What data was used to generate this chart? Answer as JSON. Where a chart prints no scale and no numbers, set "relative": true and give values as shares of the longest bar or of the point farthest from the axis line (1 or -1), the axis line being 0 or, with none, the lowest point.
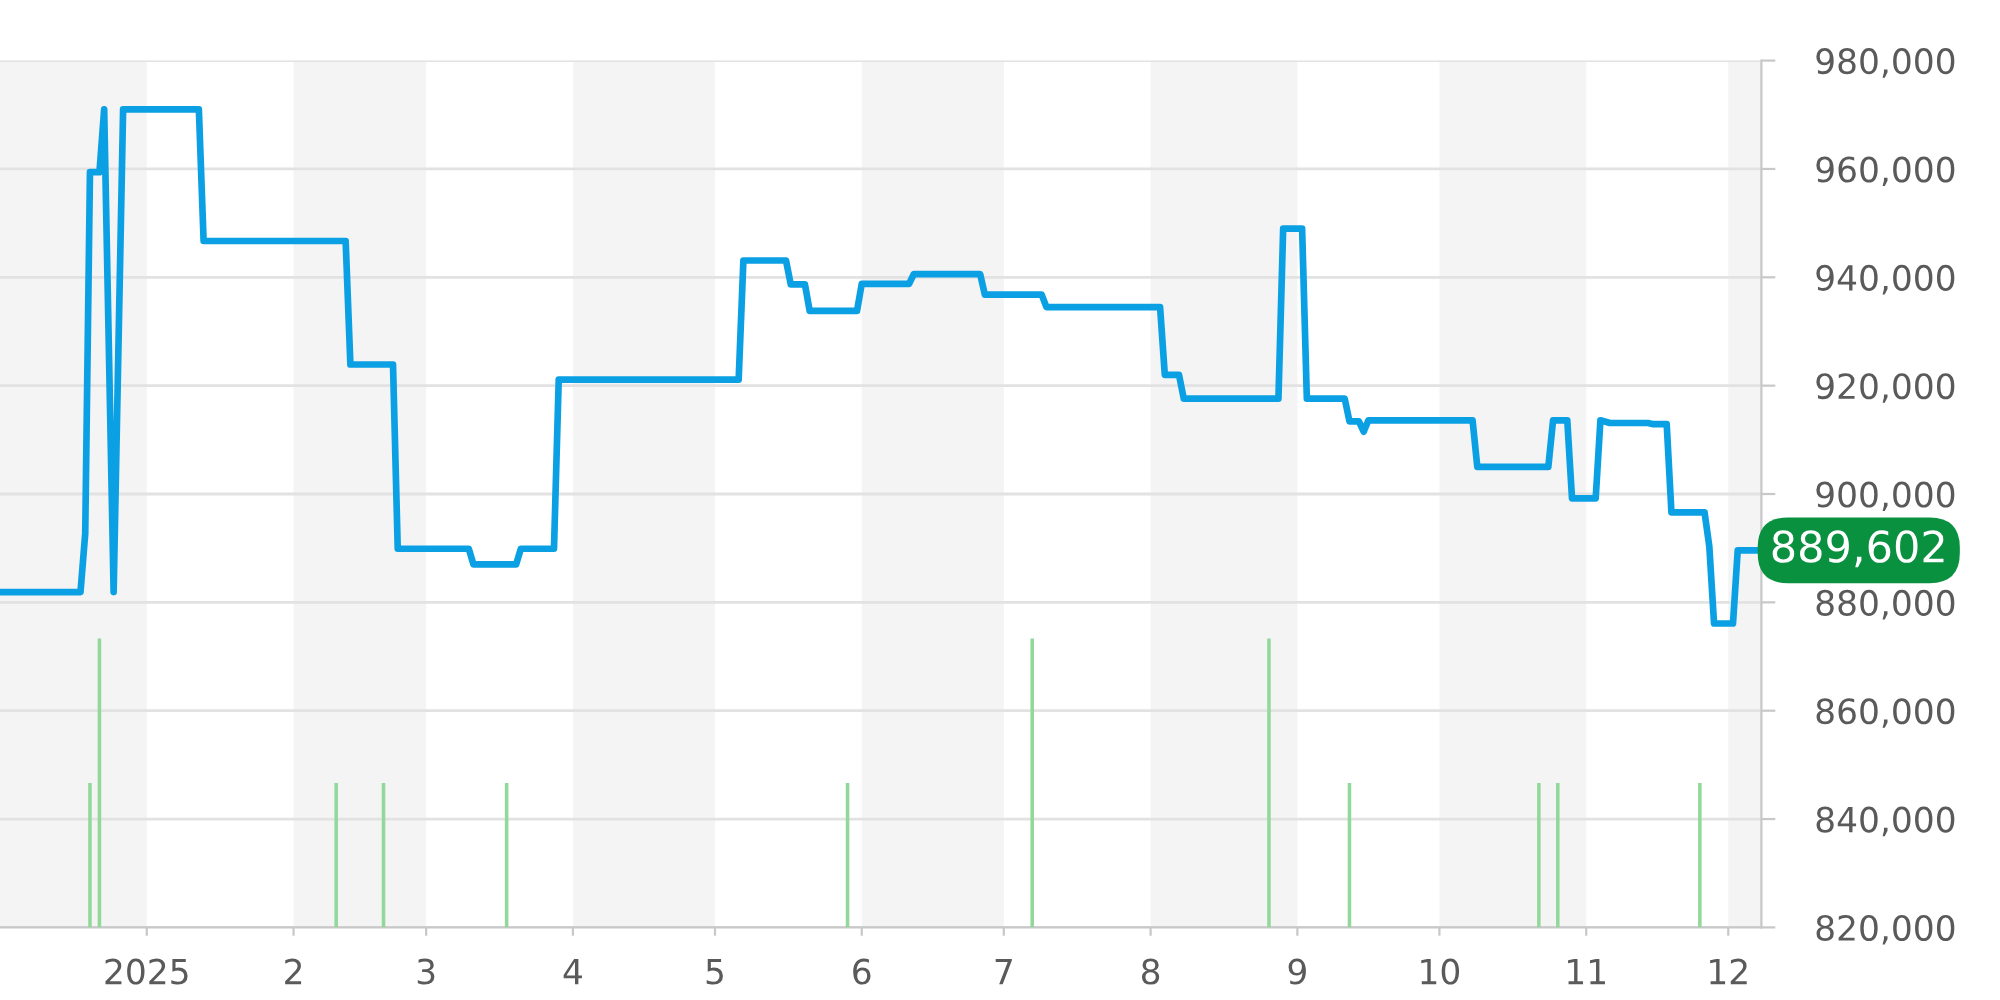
{
  "chart_data": [
    {
      "type": "line",
      "color": "#0ba0e3",
      "x": [
        "2024-12-01",
        "2024-12-18",
        "2024-12-19",
        "2024-12-20",
        "2024-12-22",
        "2024-12-23",
        "2024-12-25",
        "2024-12-27",
        "2025-01-12",
        "2025-01-13",
        "2025-02-12",
        "2025-02-13",
        "2025-02-22",
        "2025-02-23",
        "2025-03-10",
        "2025-03-11",
        "2025-03-20",
        "2025-03-21",
        "2025-03-28",
        "2025-03-29",
        "2025-05-06",
        "2025-05-07",
        "2025-05-16",
        "2025-05-17",
        "2025-05-20",
        "2025-05-21",
        "2025-05-31",
        "2025-06-01",
        "2025-06-11",
        "2025-06-12",
        "2025-06-26",
        "2025-06-27",
        "2025-07-09",
        "2025-07-10",
        "2025-08-03",
        "2025-08-04",
        "2025-08-07",
        "2025-08-08",
        "2025-08-28",
        "2025-08-29",
        "2025-09-02",
        "2025-09-03",
        "2025-09-11",
        "2025-09-12",
        "2025-09-14",
        "2025-09-15",
        "2025-09-16",
        "2025-10-08",
        "2025-10-09",
        "2025-10-24",
        "2025-10-25",
        "2025-10-28",
        "2025-10-29",
        "2025-11-03",
        "2025-11-04",
        "2025-11-06",
        "2025-11-14",
        "2025-11-15",
        "2025-11-18",
        "2025-11-19",
        "2025-11-26",
        "2025-11-27",
        "2025-11-28",
        "2025-12-02",
        "2025-12-03",
        "2025-12-08"
      ],
      "values": [
        881900,
        881900,
        892700,
        959400,
        959400,
        971000,
        881900,
        971000,
        971000,
        946700,
        946700,
        923900,
        923900,
        889900,
        889900,
        887000,
        887000,
        889900,
        889900,
        921100,
        921100,
        943100,
        943100,
        938700,
        938700,
        933800,
        933800,
        938800,
        938800,
        940600,
        940600,
        936800,
        936800,
        934500,
        934500,
        922000,
        922000,
        917600,
        917600,
        949000,
        949000,
        917600,
        917600,
        913400,
        913400,
        911500,
        913600,
        913600,
        905000,
        905000,
        913600,
        913600,
        899200,
        899200,
        913600,
        913100,
        913100,
        912900,
        912900,
        896600,
        896600,
        890300,
        876100,
        876100,
        889602,
        889602
      ],
      "xlim": [
        "2024-12-01",
        "2025-12-08"
      ],
      "xticks": [
        {
          "value": "2025-01-01",
          "label": "2025"
        },
        {
          "value": "2025-02-01",
          "label": "2"
        },
        {
          "value": "2025-03-01",
          "label": "3"
        },
        {
          "value": "2025-04-01",
          "label": "4"
        },
        {
          "value": "2025-05-01",
          "label": "5"
        },
        {
          "value": "2025-06-01",
          "label": "6"
        },
        {
          "value": "2025-07-01",
          "label": "7"
        },
        {
          "value": "2025-08-01",
          "label": "8"
        },
        {
          "value": "2025-09-01",
          "label": "9"
        },
        {
          "value": "2025-10-01",
          "label": "10"
        },
        {
          "value": "2025-11-01",
          "label": "11"
        },
        {
          "value": "2025-12-01",
          "label": "12"
        }
      ],
      "ylim": [
        820000,
        980000
      ],
      "yticks": [
        {
          "value": 820000,
          "label": "820,000"
        },
        {
          "value": 840000,
          "label": "840,000"
        },
        {
          "value": 860000,
          "label": "860,000"
        },
        {
          "value": 880000,
          "label": "880,000"
        },
        {
          "value": 900000,
          "label": "900,000"
        },
        {
          "value": 920000,
          "label": "920,000"
        },
        {
          "value": 940000,
          "label": "940,000"
        },
        {
          "value": 960000,
          "label": "960,000"
        },
        {
          "value": 980000,
          "label": "980,000"
        }
      ],
      "grid": "y",
      "bands": [
        {
          "axis": "x",
          "from": "2024-12-01",
          "to": "2025-01-01",
          "color": "#f4f4f4"
        },
        {
          "axis": "x",
          "from": "2025-02-01",
          "to": "2025-03-01",
          "color": "#f4f4f4"
        },
        {
          "axis": "x",
          "from": "2025-04-01",
          "to": "2025-05-01",
          "color": "#f4f4f4"
        },
        {
          "axis": "x",
          "from": "2025-06-01",
          "to": "2025-07-01",
          "color": "#f4f4f4"
        },
        {
          "axis": "x",
          "from": "2025-08-01",
          "to": "2025-09-01",
          "color": "#f4f4f4"
        },
        {
          "axis": "x",
          "from": "2025-10-01",
          "to": "2025-11-01",
          "color": "#f4f4f4"
        },
        {
          "axis": "x",
          "from": "2025-12-01",
          "to": "2025-12-08",
          "color": "#f4f4f4"
        }
      ],
      "annotations": [
        {
          "text": "889,602",
          "x": "2025-12-08",
          "y": 889602
        }
      ]
    },
    {
      "type": "bar",
      "relative": true,
      "color": "#93d89b",
      "x": [
        "2024-12-20",
        "2024-12-22",
        "2025-02-10",
        "2025-02-20",
        "2025-03-18",
        "2025-05-29",
        "2025-07-07",
        "2025-08-26",
        "2025-09-12",
        "2025-10-22",
        "2025-10-26",
        "2025-11-25"
      ],
      "values": [
        0.5,
        1,
        0.5,
        0.5,
        0.5,
        0.5,
        1,
        1,
        0.5,
        0.5,
        0.5,
        0.5
      ],
      "xlim": [
        "2024-12-01",
        "2025-12-08"
      ],
      "tick_labels": false
    }
  ]
}
